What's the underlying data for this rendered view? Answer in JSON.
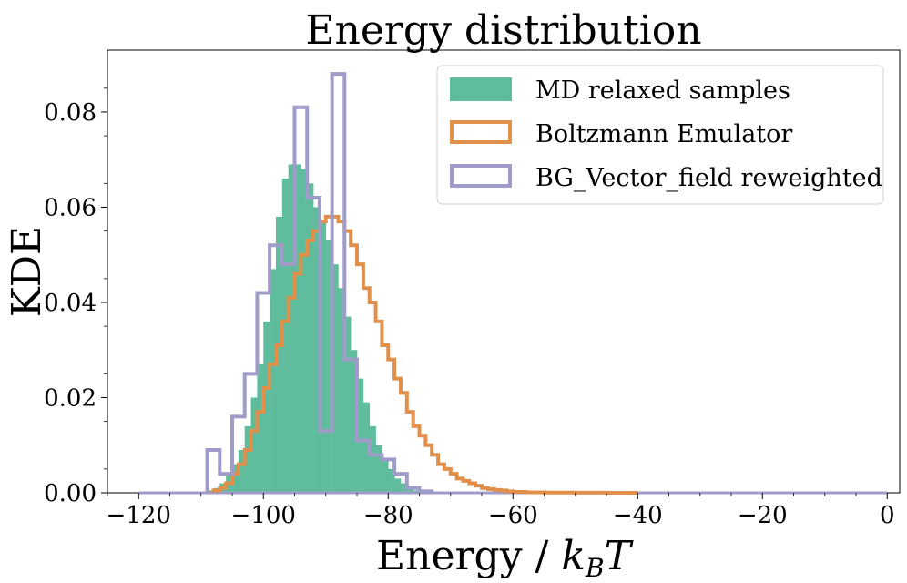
{
  "chart_data": {
    "type": "histogram",
    "title": "Energy distribution",
    "xlabel": "Energy / k_B T",
    "ylabel": "KDE",
    "xlim": [
      -125,
      2
    ],
    "ylim": [
      0,
      0.093
    ],
    "x_ticks": [
      -120,
      -100,
      -80,
      -60,
      -40,
      -20,
      0
    ],
    "x_tick_labels": [
      "−120",
      "−100",
      "−80",
      "−60",
      "−40",
      "−20",
      "0"
    ],
    "y_ticks": [
      0.0,
      0.02,
      0.04,
      0.06,
      0.08
    ],
    "y_tick_labels": [
      "0.00",
      "0.02",
      "0.04",
      "0.06",
      "0.08"
    ],
    "legend_position": "top-right",
    "series": [
      {
        "name": "MD relaxed samples",
        "style": "filled",
        "color": "#5fbc9c",
        "bin_edges": [
          -110,
          -109,
          -108,
          -107,
          -106,
          -105,
          -104,
          -103,
          -102,
          -101,
          -100,
          -99,
          -98,
          -97,
          -96,
          -95,
          -94,
          -93,
          -92,
          -91,
          -90,
          -89,
          -88,
          -87,
          -86,
          -85,
          -84,
          -83,
          -82,
          -81,
          -80,
          -79,
          -78,
          -77,
          -76,
          -75,
          -74
        ],
        "values": [
          0.0002,
          0.0005,
          0.001,
          0.002,
          0.004,
          0.006,
          0.009,
          0.014,
          0.02,
          0.027,
          0.036,
          0.047,
          0.058,
          0.066,
          0.069,
          0.069,
          0.068,
          0.065,
          0.06,
          0.057,
          0.053,
          0.048,
          0.043,
          0.037,
          0.03,
          0.024,
          0.019,
          0.014,
          0.01,
          0.007,
          0.005,
          0.003,
          0.002,
          0.001,
          0.0005,
          0.0002
        ]
      },
      {
        "name": "Boltzmann Emulator",
        "style": "step",
        "color": "#e0904a",
        "bin_edges": [
          -108,
          -107,
          -106,
          -105,
          -104,
          -103,
          -102,
          -101,
          -100,
          -99,
          -98,
          -97,
          -96,
          -95,
          -94,
          -93,
          -92,
          -91,
          -90,
          -89,
          -88,
          -87,
          -86,
          -85,
          -84,
          -83,
          -82,
          -81,
          -80,
          -79,
          -78,
          -77,
          -76,
          -75,
          -74,
          -73,
          -72,
          -71,
          -70,
          -69,
          -68,
          -67,
          -66,
          -65,
          -64,
          -63,
          -62,
          -61,
          -60,
          -58,
          -55,
          -50,
          -45,
          -40
        ],
        "values": [
          0.0005,
          0.001,
          0.002,
          0.004,
          0.006,
          0.009,
          0.013,
          0.017,
          0.022,
          0.027,
          0.031,
          0.036,
          0.041,
          0.046,
          0.05,
          0.053,
          0.055,
          0.057,
          0.058,
          0.058,
          0.057,
          0.055,
          0.052,
          0.048,
          0.043,
          0.04,
          0.036,
          0.031,
          0.028,
          0.024,
          0.021,
          0.017,
          0.014,
          0.012,
          0.01,
          0.008,
          0.006,
          0.005,
          0.004,
          0.003,
          0.0025,
          0.002,
          0.0015,
          0.001,
          0.0008,
          0.0006,
          0.0005,
          0.0003,
          0.0002,
          0.0001,
          5e-05,
          2e-05,
          0.0
        ]
      },
      {
        "name": "BG_Vector_field reweighted",
        "style": "step",
        "color": "#a09cc9",
        "bin_edges": [
          -109,
          -107,
          -105,
          -103,
          -101,
          -99,
          -97,
          -95,
          -93,
          -91,
          -89,
          -87,
          -85,
          -83,
          -81,
          -79,
          -77,
          -75,
          -73
        ],
        "values": [
          0.009,
          0.004,
          0.016,
          0.025,
          0.042,
          0.052,
          0.048,
          0.081,
          0.062,
          0.013,
          0.088,
          0.028,
          0.011,
          0.008,
          0.007,
          0.004,
          0.001,
          0.0003
        ]
      }
    ]
  },
  "colors": {
    "md_fill": "#5fbc9c",
    "boltzmann": "#e0904a",
    "bg_vector": "#a09cc9",
    "frame": "#000000"
  }
}
